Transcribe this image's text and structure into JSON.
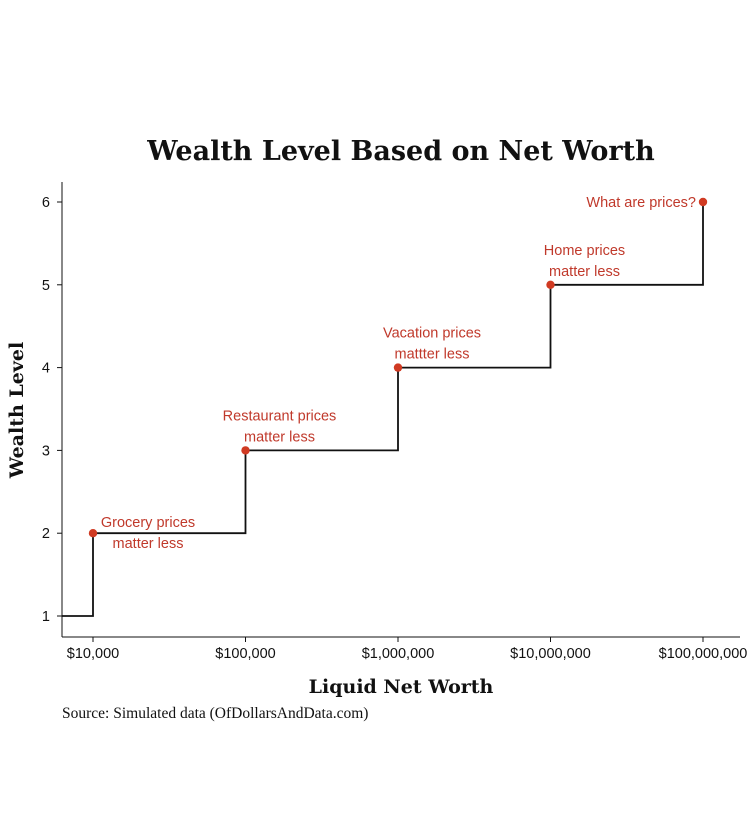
{
  "chart_data": {
    "type": "line",
    "step": true,
    "title": "Wealth Level Based on Net Worth",
    "xlabel": "Liquid Net Worth",
    "ylabel": "Wealth Level",
    "x_scale": "log",
    "xlim": [
      5000,
      200000000
    ],
    "ylim": [
      0.8,
      6.25
    ],
    "x_ticks": [
      10000,
      100000,
      1000000,
      10000000,
      100000000
    ],
    "x_tick_labels": [
      "$10,000",
      "$100,000",
      "$1,000,000",
      "$10,000,000",
      "$100,000,000"
    ],
    "y_ticks": [
      1,
      2,
      3,
      4,
      5,
      6
    ],
    "y_tick_labels": [
      "1",
      "2",
      "3",
      "4",
      "5",
      "6"
    ],
    "step_series": {
      "x": [
        5000,
        10000,
        10000,
        100000,
        100000,
        1000000,
        1000000,
        10000000,
        10000000,
        100000000,
        100000000
      ],
      "y": [
        1,
        1,
        2,
        2,
        3,
        3,
        4,
        4,
        5,
        5,
        6
      ]
    },
    "points": [
      {
        "x": 10000,
        "y": 2,
        "label_lines": [
          "Grocery prices",
          "matter less"
        ]
      },
      {
        "x": 100000,
        "y": 3,
        "label_lines": [
          "Restaurant prices",
          "matter less"
        ]
      },
      {
        "x": 1000000,
        "y": 4,
        "label_lines": [
          "Vacation prices",
          "mattter less"
        ]
      },
      {
        "x": 10000000,
        "y": 5,
        "label_lines": [
          "Home prices",
          "matter less"
        ]
      },
      {
        "x": 100000000,
        "y": 6,
        "label_lines": [
          "What are prices?"
        ]
      }
    ],
    "grid": false,
    "point_color": "#d03a22",
    "annotation_color": "#c0392b",
    "line_color": "#111111",
    "source": "Source: Simulated data (OfDollarsAndData.com)"
  }
}
